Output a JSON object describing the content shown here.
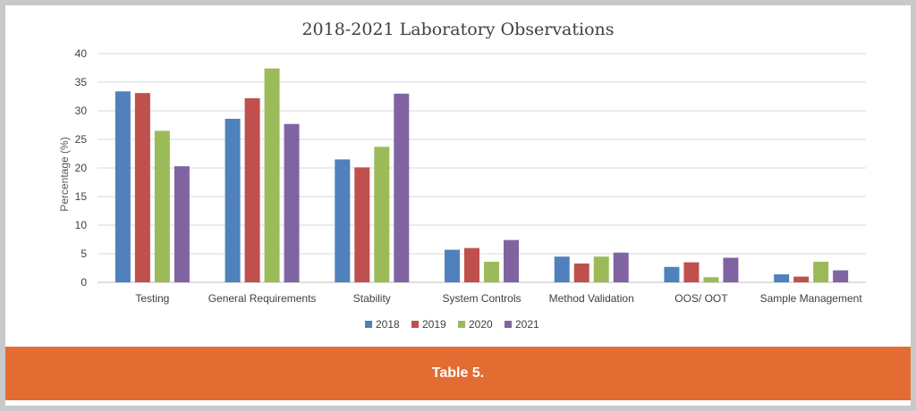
{
  "caption": "Table 5.",
  "chart_data": {
    "type": "bar",
    "title": "2018-2021 Laboratory Observations",
    "xlabel": "",
    "ylabel": "Percentage (%)",
    "ylim": [
      0,
      40
    ],
    "yticks": [
      "0",
      "5",
      "10",
      "15",
      "20",
      "25",
      "30",
      "35",
      "40"
    ],
    "grid": true,
    "legend_position": "bottom",
    "categories": [
      "Testing",
      "General Requirements",
      "Stability",
      "System Controls",
      "Method Validation",
      "OOS/ OOT",
      "Sample Management"
    ],
    "series": [
      {
        "name": "2018",
        "color": "#4f81bd",
        "values": [
          33.4,
          28.6,
          21.5,
          5.7,
          4.5,
          2.7,
          1.4
        ]
      },
      {
        "name": "2019",
        "color": "#c0504d",
        "values": [
          33.1,
          32.2,
          20.1,
          6.0,
          3.3,
          3.5,
          1.0
        ]
      },
      {
        "name": "2020",
        "color": "#9bbb59",
        "values": [
          26.5,
          37.4,
          23.7,
          3.6,
          4.5,
          0.9,
          3.6
        ]
      },
      {
        "name": "2021",
        "color": "#8064a2",
        "values": [
          20.3,
          27.7,
          33.0,
          7.4,
          5.2,
          4.3,
          2.1
        ]
      }
    ]
  }
}
